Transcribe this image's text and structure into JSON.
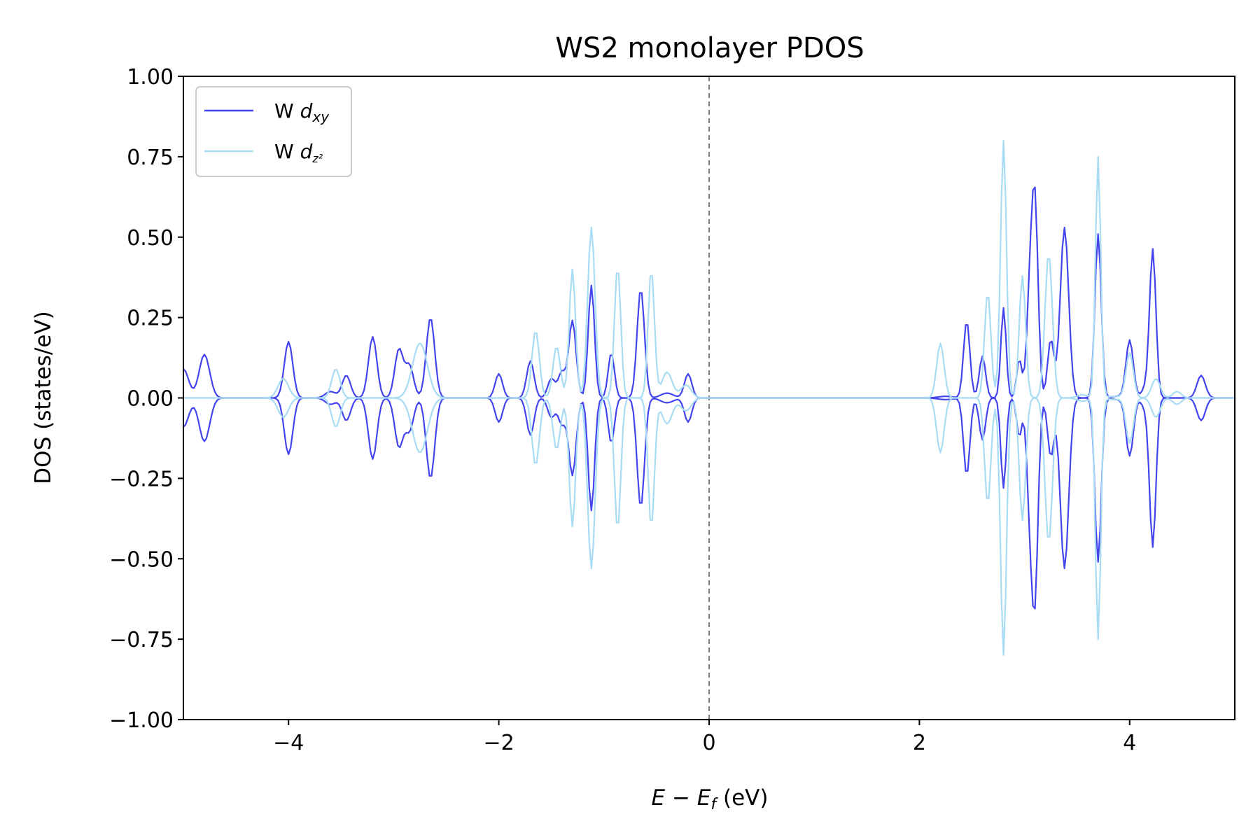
{
  "chart_data": {
    "type": "line",
    "title": "WS2 monolayer PDOS",
    "xlabel_main": "E − E",
    "xlabel_sub": "f",
    "xlabel_unit": " (eV)",
    "ylabel": "DOS (states/eV)",
    "xlim": [
      -5,
      5
    ],
    "ylim": [
      -1,
      1
    ],
    "x_ticks": [
      -4,
      -2,
      0,
      2,
      4
    ],
    "x_tick_labels": [
      "−4",
      "−2",
      "0",
      "2",
      "4"
    ],
    "y_ticks": [
      1,
      0.75,
      0.5,
      0.25,
      0,
      -0.25,
      -0.5,
      -0.75,
      -1
    ],
    "y_tick_labels": [
      "1.00",
      "0.75",
      "0.50",
      "0.25",
      "0.00",
      "−0.25",
      "−0.50",
      "−0.75",
      "−1.00"
    ],
    "fermi_level": 0,
    "grid": false,
    "legend_position": "top-left",
    "mirrored_negative": true,
    "series": [
      {
        "name": "W d_xy",
        "legend_base": "W ",
        "legend_italic": "d",
        "legend_sub": "xy",
        "color": "#4444ee",
        "peaks": [
          [
            -5.0,
            0.09,
            0.05
          ],
          [
            -4.8,
            0.135,
            0.05
          ],
          [
            -4.0,
            0.175,
            0.04
          ],
          [
            -3.6,
            0.02,
            0.05
          ],
          [
            -3.45,
            0.07,
            0.04
          ],
          [
            -3.2,
            0.19,
            0.04
          ],
          [
            -2.95,
            0.15,
            0.04
          ],
          [
            -2.85,
            0.1,
            0.04
          ],
          [
            -2.65,
            0.25,
            0.04
          ],
          [
            -2.0,
            0.075,
            0.035
          ],
          [
            -1.7,
            0.115,
            0.035
          ],
          [
            -1.5,
            0.06,
            0.035
          ],
          [
            -1.4,
            0.08,
            0.035
          ],
          [
            -1.3,
            0.24,
            0.035
          ],
          [
            -1.12,
            0.35,
            0.03
          ],
          [
            -0.93,
            0.14,
            0.03
          ],
          [
            -0.65,
            0.34,
            0.035
          ],
          [
            -0.4,
            0.015,
            0.06
          ],
          [
            -0.2,
            0.075,
            0.035
          ],
          [
            2.25,
            0.005,
            0.07
          ],
          [
            2.45,
            0.24,
            0.03
          ],
          [
            2.6,
            0.13,
            0.03
          ],
          [
            2.8,
            0.28,
            0.025
          ],
          [
            2.95,
            0.12,
            0.025
          ],
          [
            3.05,
            0.3,
            0.03
          ],
          [
            3.1,
            0.58,
            0.03
          ],
          [
            3.25,
            0.18,
            0.03
          ],
          [
            3.38,
            0.53,
            0.04
          ],
          [
            3.7,
            0.51,
            0.03
          ],
          [
            3.88,
            0.005,
            0.05
          ],
          [
            4.0,
            0.18,
            0.035
          ],
          [
            4.15,
            0.03,
            0.035
          ],
          [
            4.22,
            0.46,
            0.03
          ],
          [
            4.68,
            0.07,
            0.04
          ]
        ]
      },
      {
        "name": "W d_z²",
        "legend_base": "W ",
        "legend_italic": "d",
        "legend_sub": "z²",
        "color": "#a8dcf4",
        "peaks": [
          [
            -4.05,
            0.06,
            0.05
          ],
          [
            -3.55,
            0.09,
            0.04
          ],
          [
            -2.75,
            0.17,
            0.07
          ],
          [
            -1.65,
            0.21,
            0.035
          ],
          [
            -1.45,
            0.16,
            0.035
          ],
          [
            -1.3,
            0.4,
            0.03
          ],
          [
            -1.12,
            0.53,
            0.035
          ],
          [
            -0.87,
            0.41,
            0.03
          ],
          [
            -0.55,
            0.4,
            0.03
          ],
          [
            -0.4,
            0.08,
            0.05
          ],
          [
            -0.22,
            0.04,
            0.05
          ],
          [
            2.2,
            0.17,
            0.035
          ],
          [
            2.65,
            0.33,
            0.03
          ],
          [
            2.8,
            0.8,
            0.028
          ],
          [
            2.98,
            0.38,
            0.03
          ],
          [
            3.23,
            0.45,
            0.035
          ],
          [
            3.55,
            0.01,
            0.05
          ],
          [
            3.7,
            0.75,
            0.025
          ],
          [
            3.85,
            0.005,
            0.06
          ],
          [
            4.0,
            0.14,
            0.035
          ],
          [
            4.25,
            0.06,
            0.04
          ],
          [
            4.45,
            0.02,
            0.04
          ]
        ]
      }
    ]
  }
}
